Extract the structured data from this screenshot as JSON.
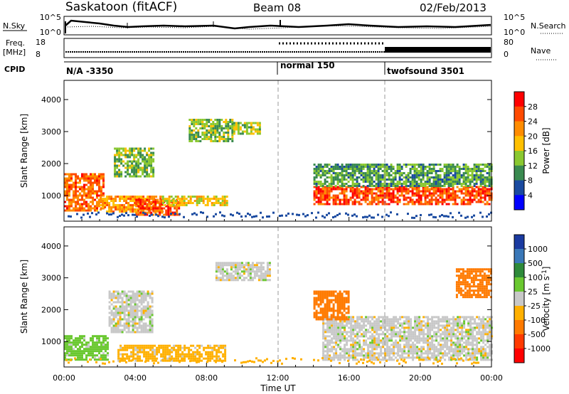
{
  "header": {
    "station": "Saskatoon (fitACF)",
    "beam": "Beam 08",
    "date": "02/Feb/2013"
  },
  "noise_panel": {
    "left_label": "N.Sky",
    "right_label": "N.Search",
    "left_ticks": [
      "10^5",
      "10^0"
    ],
    "right_ticks": [
      "10^5",
      "10^0"
    ]
  },
  "freq_panel": {
    "left_label_1": "Freq.",
    "left_label_2": "[MHz]",
    "right_label": "Nave",
    "left_ticks": [
      "18",
      "8"
    ],
    "right_ticks": [
      "80",
      "0"
    ]
  },
  "cpid_panel": {
    "label": "CPID",
    "segments": [
      {
        "text": "N/A -3350",
        "start_hour": 0
      },
      {
        "text": "normal 150",
        "start_hour": 12
      },
      {
        "text": "twofsound 3501",
        "start_hour": 18
      }
    ]
  },
  "power_colorbar": {
    "label": "Power [dB]",
    "ticks": [
      "28",
      "24",
      "20",
      "16",
      "12",
      "8",
      "4"
    ],
    "colors": [
      "#ff0000",
      "#ff4a00",
      "#ff8c00",
      "#ffc000",
      "#8ac830",
      "#3a8a50",
      "#1a4aa0",
      "#0000ff"
    ]
  },
  "velocity_colorbar": {
    "label": "Velocity [m s^-1]",
    "ticks": [
      "1000",
      "500",
      "100",
      "25",
      "-25",
      "-100",
      "-500",
      "-1000"
    ],
    "colors": [
      "#1a3aa0",
      "#3a78b8",
      "#2e8a3a",
      "#6ac830",
      "#c8c8c8",
      "#ffb000",
      "#ff7a00",
      "#ff3a00",
      "#ff0000"
    ]
  },
  "time_axis": {
    "label": "Time UT",
    "ticks": [
      "00:00",
      "04:00",
      "08:00",
      "12:00",
      "16:00",
      "20:00",
      "00:00"
    ]
  },
  "chart_data": [
    {
      "type": "heatmap",
      "title": "",
      "xlabel": "Time UT",
      "ylabel": "Slant Range [km]",
      "xlim_hours": [
        0,
        24
      ],
      "ylim": [
        200,
        4600
      ],
      "yticks": [
        1000,
        2000,
        3000,
        4000
      ],
      "colorbar": "Power [dB]",
      "color_range": [
        0,
        30
      ],
      "approx_regions": [
        {
          "t0": 0.0,
          "t1": 2.2,
          "r0": 500,
          "r1": 1700,
          "value": 24
        },
        {
          "t0": 2.0,
          "t1": 5.5,
          "r0": 500,
          "r1": 1000,
          "value": 20
        },
        {
          "t0": 2.8,
          "t1": 5.0,
          "r0": 1600,
          "r1": 2500,
          "value": 12
        },
        {
          "t0": 4.0,
          "t1": 6.5,
          "r0": 400,
          "r1": 900,
          "value": 26
        },
        {
          "t0": 5.5,
          "t1": 9.2,
          "r0": 700,
          "r1": 1000,
          "value": 16
        },
        {
          "t0": 7.0,
          "t1": 9.5,
          "r0": 2700,
          "r1": 3400,
          "value": 12
        },
        {
          "t0": 9.5,
          "t1": 11.0,
          "r0": 2900,
          "r1": 3300,
          "value": 14
        },
        {
          "t0": 14.0,
          "t1": 24.0,
          "r0": 700,
          "r1": 1300,
          "value": 26
        },
        {
          "t0": 14.0,
          "t1": 24.0,
          "r0": 1300,
          "r1": 2000,
          "value": 10
        }
      ]
    },
    {
      "type": "heatmap",
      "title": "",
      "xlabel": "Time UT",
      "ylabel": "Slant Range [km]",
      "xlim_hours": [
        0,
        24
      ],
      "ylim": [
        200,
        4600
      ],
      "yticks": [
        1000,
        2000,
        3000,
        4000
      ],
      "colorbar": "Velocity [m s^-1]",
      "color_levels": [
        1000,
        500,
        100,
        25,
        -25,
        -100,
        -500,
        -1000
      ],
      "approx_regions": [
        {
          "t0": 0.0,
          "t1": 2.5,
          "r0": 400,
          "r1": 1200,
          "value": 50
        },
        {
          "t0": 2.5,
          "t1": 5.0,
          "r0": 1300,
          "r1": 2600,
          "value": 0
        },
        {
          "t0": 3.0,
          "t1": 9.0,
          "r0": 400,
          "r1": 900,
          "value": -50
        },
        {
          "t0": 8.5,
          "t1": 11.5,
          "r0": 2900,
          "r1": 3500,
          "value": 0
        },
        {
          "t0": 14.5,
          "t1": 24.0,
          "r0": 400,
          "r1": 1800,
          "value": 0
        },
        {
          "t0": 14.0,
          "t1": 16.0,
          "r0": 1700,
          "r1": 2600,
          "value": -300
        },
        {
          "t0": 22.0,
          "t1": 24.0,
          "r0": 2400,
          "r1": 3300,
          "value": -300
        }
      ]
    }
  ]
}
